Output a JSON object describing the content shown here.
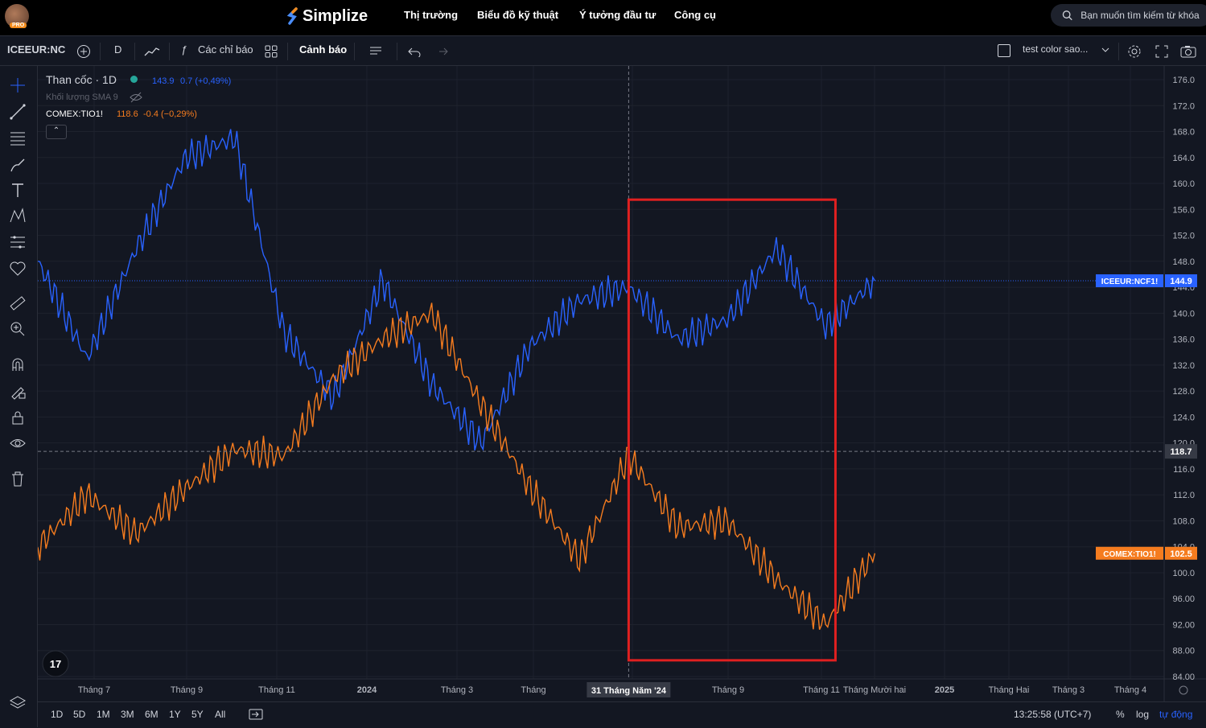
{
  "nav": {
    "brand": "Simplize",
    "menu": [
      "Thị trường",
      "Biểu đồ kỹ thuật",
      "Ý tưởng đầu tư",
      "Công cụ"
    ],
    "avatar_badge": "PRO",
    "search_placeholder": "Bạn muốn tìm kiếm từ khóa"
  },
  "toolbar": {
    "symbol": "ICEEUR:NC",
    "interval": "D",
    "indicators_label": "Các chỉ báo",
    "alert_label": "Cảnh báo",
    "layout_name": "test color sao..."
  },
  "legend": {
    "main_title": "Than cốc · 1D",
    "main_price": "143.9",
    "main_change": "0.7 (+0,49%)",
    "volume_label": "Khối lượng SMA 9",
    "compare_symbol": "COMEX:TIO1!",
    "compare_price": "118.6",
    "compare_change": "-0.4 (−0,29%)"
  },
  "crosshair": {
    "date_label": "31 Tháng Năm '24",
    "price_label": "118.7"
  },
  "price_tags": [
    {
      "symbol": "ICEEUR:NCF1!",
      "value": "144.9",
      "color": "#2962ff"
    },
    {
      "symbol": "COMEX:TIO1!",
      "value": "102.5",
      "color": "#f57c1f"
    }
  ],
  "bottom": {
    "ranges": [
      "1D",
      "5D",
      "1M",
      "3M",
      "6M",
      "1Y",
      "5Y",
      "All"
    ],
    "time": "13:25:58 (UTC+7)",
    "percent": "%",
    "log": "log",
    "auto": "tự động"
  },
  "chart_data": {
    "type": "line",
    "ylim": [
      84,
      177
    ],
    "y_ticks": [
      "176.0",
      "172.0",
      "168.0",
      "164.0",
      "160.0",
      "156.0",
      "152.0",
      "148.0",
      "144.0",
      "140.0",
      "136.0",
      "132.0",
      "128.0",
      "124.0",
      "120.0",
      "116.0",
      "112.0",
      "108.0",
      "104.0",
      "100.0",
      "96.00",
      "92.00",
      "88.00",
      "84.00"
    ],
    "x_ticks": [
      "Tháng 7",
      "Tháng 9",
      "Tháng 11",
      "2024",
      "Tháng 3",
      "Tháng",
      "ng 7",
      "Tháng 9",
      "Tháng 11",
      "Tháng Mười hai",
      "2025",
      "Tháng Hai",
      "Tháng 3",
      "Tháng 4"
    ],
    "x": [
      "2023-06",
      "2023-07",
      "2023-08",
      "2023-09",
      "2023-10",
      "2023-11",
      "2023-12",
      "2024-01",
      "2024-02",
      "2024-03",
      "2024-04",
      "2024-05",
      "2024-06",
      "2024-07",
      "2024-08",
      "2024-09",
      "2024-10",
      "2024-11"
    ],
    "series": [
      {
        "name": "ICEEUR:NCF1!",
        "color": "#2962ff",
        "values": [
          148,
          133,
          150,
          164,
          167,
          137,
          127,
          145,
          129,
          120,
          135,
          142,
          144,
          136,
          139,
          150,
          138,
          145
        ]
      },
      {
        "name": "COMEX:TIO1!",
        "color": "#f57c1f",
        "values": [
          104,
          112,
          106,
          113,
          119,
          118,
          130,
          136,
          140,
          126,
          113,
          102,
          118,
          107,
          108,
          99,
          92,
          103
        ]
      }
    ],
    "highlight": {
      "from": "2024-05-31",
      "to": "2024-10-07",
      "color": "#e02020"
    },
    "grid": true
  }
}
